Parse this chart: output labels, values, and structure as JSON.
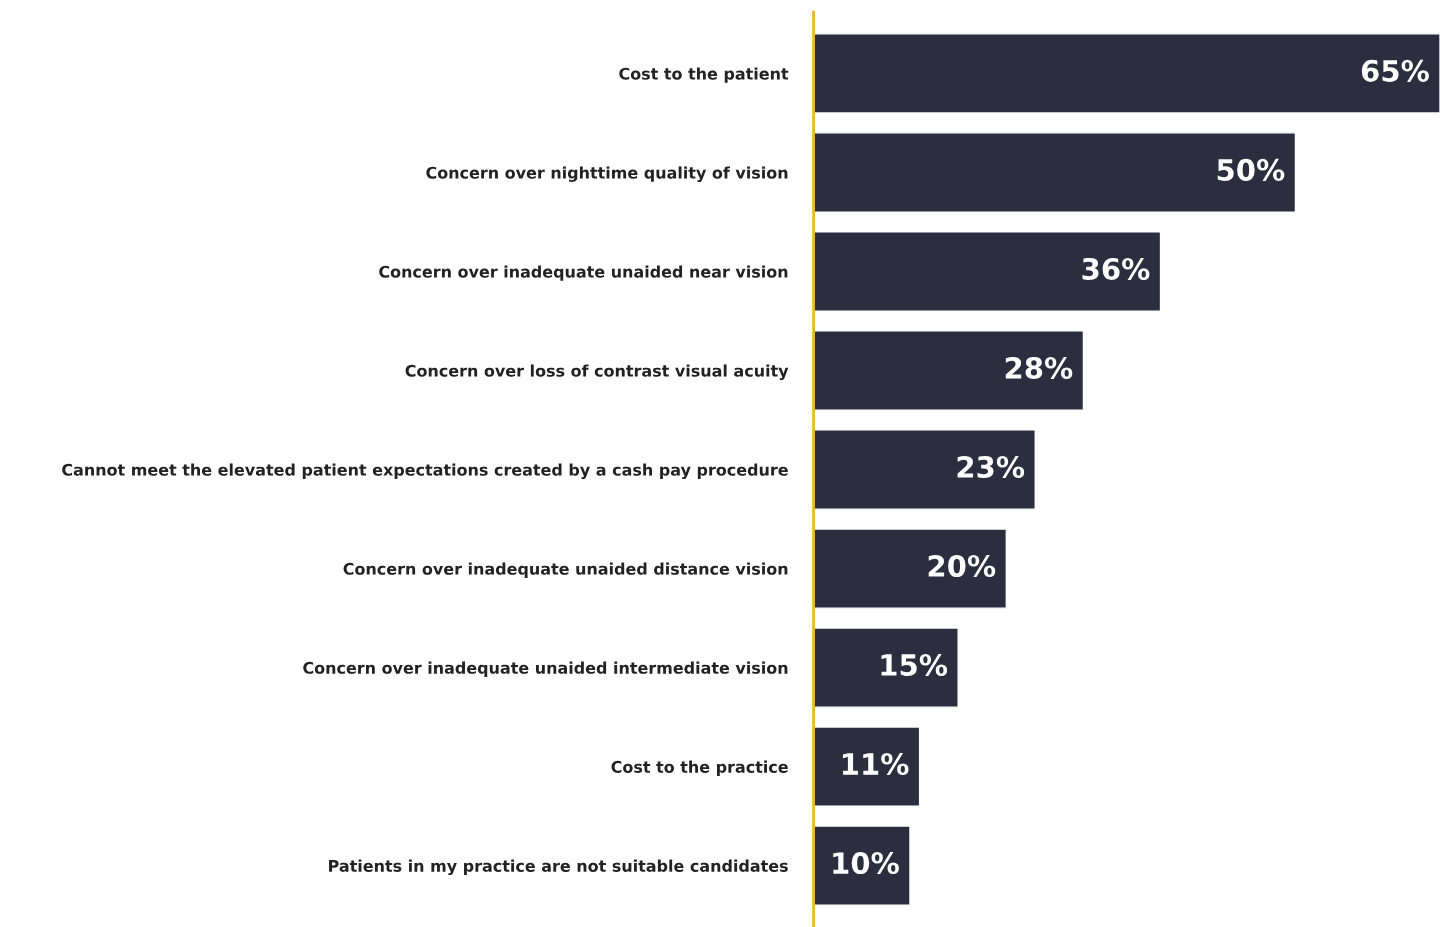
{
  "chart_data": {
    "type": "bar",
    "orientation": "horizontal",
    "categories": [
      "Cost to the patient",
      "Concern over nighttime quality of vision",
      "Concern over inadequate unaided near vision",
      "Concern over loss of contrast visual acuity",
      "Cannot meet the elevated patient expectations created by a cash pay procedure",
      "Concern over inadequate unaided distance vision",
      "Concern over inadequate unaided intermediate vision",
      "Cost to the practice",
      "Patients in my practice are not suitable candidates"
    ],
    "values": [
      65,
      50,
      36,
      28,
      23,
      20,
      15,
      11,
      10
    ],
    "value_labels": [
      "65%",
      "50%",
      "36%",
      "28%",
      "23%",
      "20%",
      "15%",
      "11%",
      "10%"
    ],
    "color": "#2d2d3f",
    "grid": false,
    "legend": false
  }
}
